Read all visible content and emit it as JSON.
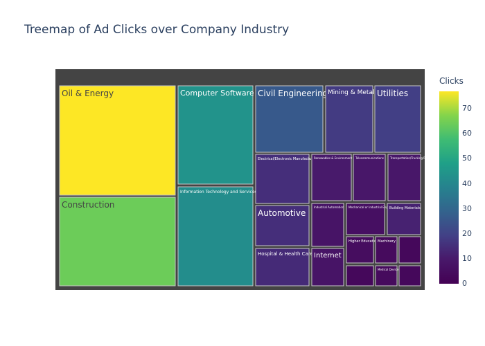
{
  "title": "Treemap of Ad Clicks over Company Industry",
  "colorbar": {
    "title": "Clicks",
    "ticks": [
      "70",
      "60",
      "50",
      "40",
      "30",
      "20",
      "10",
      "0"
    ]
  },
  "chart_data": {
    "type": "treemap",
    "title": "Treemap of Ad Clicks over Company Industry",
    "color_metric": "Clicks",
    "colorscale": "Viridis",
    "color_range": [
      0,
      77
    ],
    "items": [
      {
        "label": "Oil & Energy",
        "value": 77
      },
      {
        "label": "Construction",
        "value": 64
      },
      {
        "label": "Computer Software",
        "value": 44
      },
      {
        "label": "Information Technology and Services",
        "value": 42
      },
      {
        "label": "Civil Engineering",
        "value": 26
      },
      {
        "label": "Mining & Metals",
        "value": 18
      },
      {
        "label": "Utilities",
        "value": 19
      },
      {
        "label": "Electrical/Electronic Manufacturing",
        "value": 15
      },
      {
        "label": "Renewables & Environment",
        "value": 10
      },
      {
        "label": "Telecommunications",
        "value": 9
      },
      {
        "label": "Transportation/Trucking/Railroad",
        "value": 9
      },
      {
        "label": "Automotive",
        "value": 15
      },
      {
        "label": "Industrial Automation",
        "value": 8
      },
      {
        "label": "Mechanical or Industrial Engineering",
        "value": 6
      },
      {
        "label": "Building Materials",
        "value": 12
      },
      {
        "label": "Hospital & Health Care",
        "value": 14
      },
      {
        "label": "Internet",
        "value": 8
      },
      {
        "label": "Higher Education",
        "value": 5
      },
      {
        "label": "Machinery",
        "value": 4
      },
      {
        "label": "Medical Devices",
        "value": 4
      },
      {
        "label": "",
        "value": 3
      },
      {
        "label": "",
        "value": 3
      },
      {
        "label": "",
        "value": 3
      }
    ]
  }
}
